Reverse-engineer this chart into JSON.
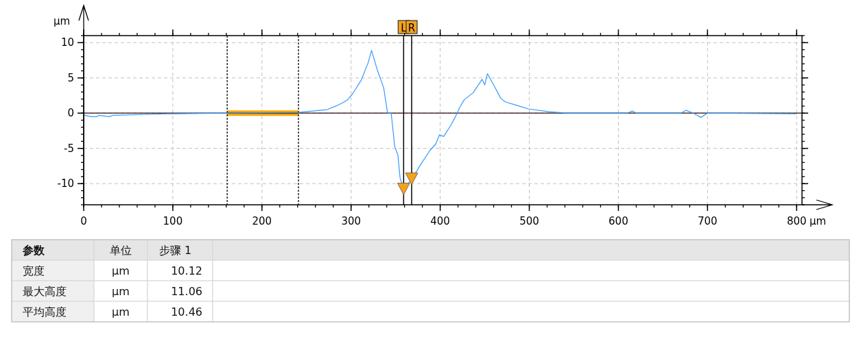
{
  "chart_data": {
    "type": "line",
    "xlabel": "μm",
    "ylabel": "μm",
    "xlim": [
      0,
      806
    ],
    "ylim": [
      -13,
      11
    ],
    "xticks": [
      0,
      100,
      200,
      300,
      400,
      500,
      600,
      700,
      800
    ],
    "yticks": [
      -10,
      -5,
      0,
      5,
      10
    ],
    "grid": true,
    "marker": "none",
    "line_style": "solid",
    "series": [
      {
        "color": "#3399ff",
        "x": [
          0,
          1,
          8.7,
          15,
          16.5,
          29,
          33,
          93,
          161,
          241,
          273,
          283,
          291,
          296,
          301,
          311.5,
          319,
          323,
          329.5,
          336.6,
          341,
          345,
          349,
          352.6,
          355,
          359,
          364,
          369,
          378,
          388.5,
          395,
          399,
          404,
          411.6,
          416.7,
          421.9,
          427,
          437,
          447,
          450,
          453,
          460,
          468,
          473,
          486,
          499,
          522,
          542,
          610,
          615.6,
          620,
          670,
          676,
          684,
          692.6,
          700,
          800
        ],
        "values": [
          -0.3,
          -0.3,
          -0.5,
          -0.5,
          -0.3,
          -0.5,
          -0.3,
          -0.1,
          0,
          0.1,
          0.5,
          1.0,
          1.5,
          1.9,
          2.6,
          4.7,
          7.1,
          8.9,
          6.1,
          3.6,
          0,
          0,
          -4.7,
          -6,
          -9.2,
          -10.8,
          -10,
          -9.2,
          -7.3,
          -5.3,
          -4.4,
          -3.1,
          -3.3,
          -1.8,
          -0.6,
          0.8,
          1.9,
          2.9,
          4.8,
          4.0,
          5.6,
          4.0,
          2.1,
          1.6,
          1.1,
          0.6,
          0.2,
          0,
          0,
          0.3,
          0,
          0,
          0.4,
          0,
          -0.6,
          0,
          -0.1
        ]
      }
    ],
    "ref_lines": [
      {
        "axis": "y",
        "value": 0,
        "color": "#2a0a0a",
        "line_style": "solid"
      },
      {
        "axis": "x",
        "value": 161,
        "color": "#000000",
        "line_style": "dashed"
      },
      {
        "axis": "x",
        "value": 241,
        "color": "#000000",
        "line_style": "dashed"
      },
      {
        "axis": "x",
        "value": 359,
        "label": "L",
        "color": "#000000",
        "line_style": "solid"
      },
      {
        "axis": "x",
        "value": 368,
        "label": "R",
        "color": "#000000",
        "line_style": "solid"
      }
    ],
    "annotations": [
      "参数",
      "单位",
      "步骤 1",
      "宽度",
      "μm",
      "10.12",
      "最大高度",
      "μm",
      "11.06",
      "平均高度",
      "μm",
      "10.46"
    ]
  }
}
